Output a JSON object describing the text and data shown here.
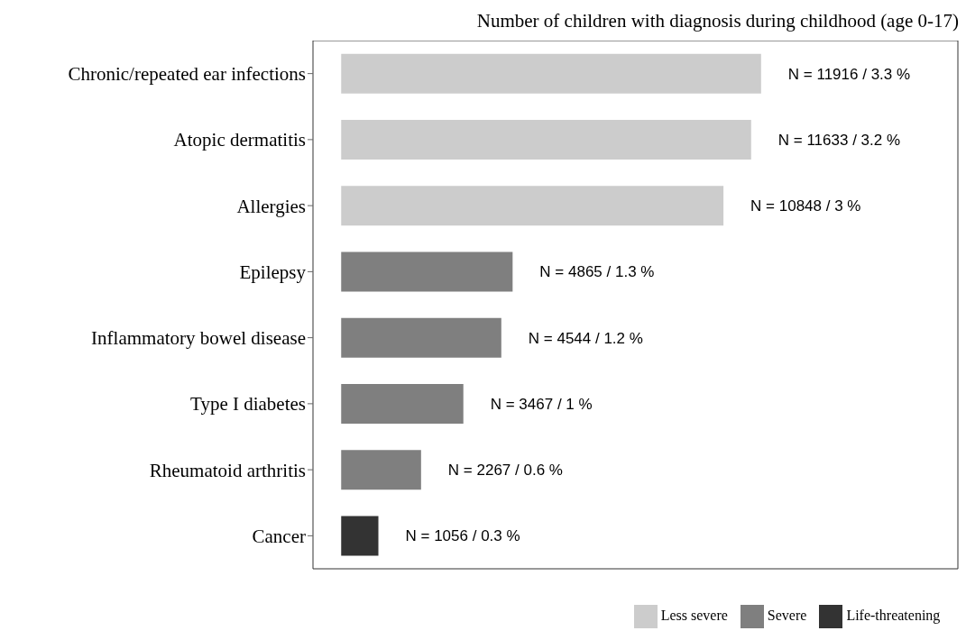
{
  "chart_data": {
    "type": "bar",
    "orientation": "horizontal",
    "stacked": true,
    "title": "Number of children with diagnosis during childhood (age 0-17)",
    "categories": [
      "Chronic/repeated ear infections",
      "Atopic dermatitis",
      "Allergies",
      "Epilepsy",
      "Inflammatory bowel disease",
      "Type I diabetes",
      "Rheumatoid arthritis",
      "Cancer"
    ],
    "series": [
      {
        "name": "Less severe",
        "color": "#cccccc",
        "values": [
          11916,
          11633,
          10848,
          null,
          null,
          null,
          null,
          null
        ],
        "value_labels": [
          "N = 11916 / 3.3 %",
          "N = 11633 / 3.2 %",
          "N = 10848 / 3 %",
          null,
          null,
          null,
          null,
          null
        ]
      },
      {
        "name": "Severe",
        "color": "#7f7f7f",
        "values": [
          null,
          null,
          null,
          4865,
          4544,
          3467,
          2267,
          null
        ],
        "value_labels": [
          null,
          null,
          null,
          "N = 4865 / 1.3 %",
          "N = 4544 / 1.2 %",
          "N = 3467 / 1 %",
          "N = 2267 / 0.6 %",
          null
        ]
      },
      {
        "name": "Life-threatening",
        "color": "#333333",
        "values": [
          null,
          null,
          null,
          null,
          null,
          null,
          null,
          1056
        ],
        "value_labels": [
          null,
          null,
          null,
          null,
          null,
          null,
          null,
          "N = 1056 / 0.3 %"
        ]
      }
    ],
    "xlim": [
      -800,
      17500
    ],
    "tick_labels": "y",
    "legend": "bottom"
  }
}
